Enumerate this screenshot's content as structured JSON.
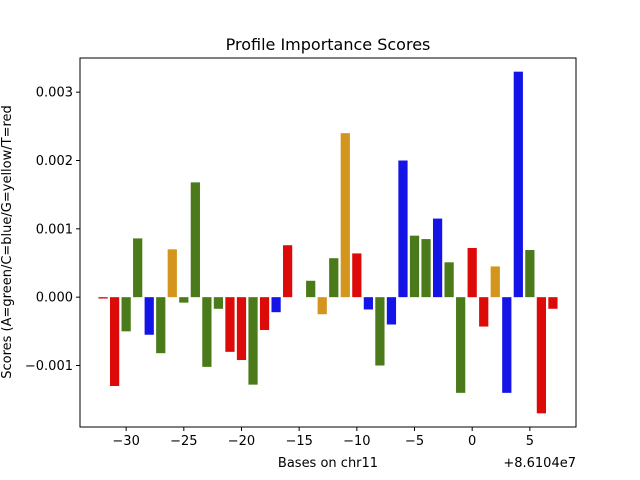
{
  "chart_data": {
    "type": "bar",
    "title": "Profile Importance Scores",
    "xlabel": "Bases on chr11",
    "ylabel": "Scores (A=green/C=blue/G=yellow/T=red",
    "x_offset_label": "+8.6104e7",
    "xlim": [
      -34,
      9
    ],
    "ylim": [
      -0.0019,
      0.0035
    ],
    "x_ticks": [
      -30,
      -25,
      -20,
      -15,
      -10,
      -5,
      0,
      5
    ],
    "x_tick_labels": [
      "−30",
      "−25",
      "−20",
      "−15",
      "−10",
      "−5",
      "0",
      "5"
    ],
    "y_ticks": [
      -0.001,
      0.0,
      0.001,
      0.002,
      0.003
    ],
    "y_tick_labels": [
      "−0.001",
      "0.000",
      "0.001",
      "0.002",
      "0.003"
    ],
    "colors": {
      "A": "#4a7a1a",
      "C": "#1414e6",
      "G": "#d4951e",
      "T": "#dd0a0a"
    },
    "bars": [
      {
        "x": -32,
        "base": "T",
        "value": -2e-05
      },
      {
        "x": -31,
        "base": "T",
        "value": -0.0013
      },
      {
        "x": -30,
        "base": "A",
        "value": -0.0005
      },
      {
        "x": -29,
        "base": "A",
        "value": 0.00086
      },
      {
        "x": -28,
        "base": "C",
        "value": -0.00055
      },
      {
        "x": -27,
        "base": "A",
        "value": -0.00082
      },
      {
        "x": -26,
        "base": "G",
        "value": 0.0007
      },
      {
        "x": -25,
        "base": "A",
        "value": -8e-05
      },
      {
        "x": -24,
        "base": "A",
        "value": 0.00168
      },
      {
        "x": -23,
        "base": "A",
        "value": -0.00102
      },
      {
        "x": -22,
        "base": "A",
        "value": -0.00017
      },
      {
        "x": -21,
        "base": "T",
        "value": -0.0008
      },
      {
        "x": -20,
        "base": "T",
        "value": -0.00092
      },
      {
        "x": -19,
        "base": "A",
        "value": -0.00128
      },
      {
        "x": -18,
        "base": "T",
        "value": -0.00048
      },
      {
        "x": -17,
        "base": "C",
        "value": -0.00022
      },
      {
        "x": -16,
        "base": "T",
        "value": 0.00076
      },
      {
        "x": -14,
        "base": "A",
        "value": 0.00024
      },
      {
        "x": -13,
        "base": "G",
        "value": -0.00025
      },
      {
        "x": -12,
        "base": "A",
        "value": 0.00057
      },
      {
        "x": -11,
        "base": "G",
        "value": 0.0024
      },
      {
        "x": -10,
        "base": "T",
        "value": 0.00064
      },
      {
        "x": -9,
        "base": "C",
        "value": -0.00018
      },
      {
        "x": -8,
        "base": "A",
        "value": -0.001
      },
      {
        "x": -7,
        "base": "C",
        "value": -0.0004
      },
      {
        "x": -6,
        "base": "C",
        "value": 0.002
      },
      {
        "x": -5,
        "base": "A",
        "value": 0.0009
      },
      {
        "x": -4,
        "base": "A",
        "value": 0.00085
      },
      {
        "x": -3,
        "base": "C",
        "value": 0.00115
      },
      {
        "x": -2,
        "base": "A",
        "value": 0.00051
      },
      {
        "x": -1,
        "base": "A",
        "value": -0.0014
      },
      {
        "x": 0,
        "base": "T",
        "value": 0.00072
      },
      {
        "x": 1,
        "base": "T",
        "value": -0.00043
      },
      {
        "x": 2,
        "base": "G",
        "value": 0.00045
      },
      {
        "x": 3,
        "base": "C",
        "value": -0.0014
      },
      {
        "x": 4,
        "base": "C",
        "value": 0.0033
      },
      {
        "x": 5,
        "base": "A",
        "value": 0.00069
      },
      {
        "x": 6,
        "base": "T",
        "value": -0.0017
      },
      {
        "x": 7,
        "base": "T",
        "value": -0.00017
      }
    ],
    "grid": false,
    "legend": "none"
  }
}
